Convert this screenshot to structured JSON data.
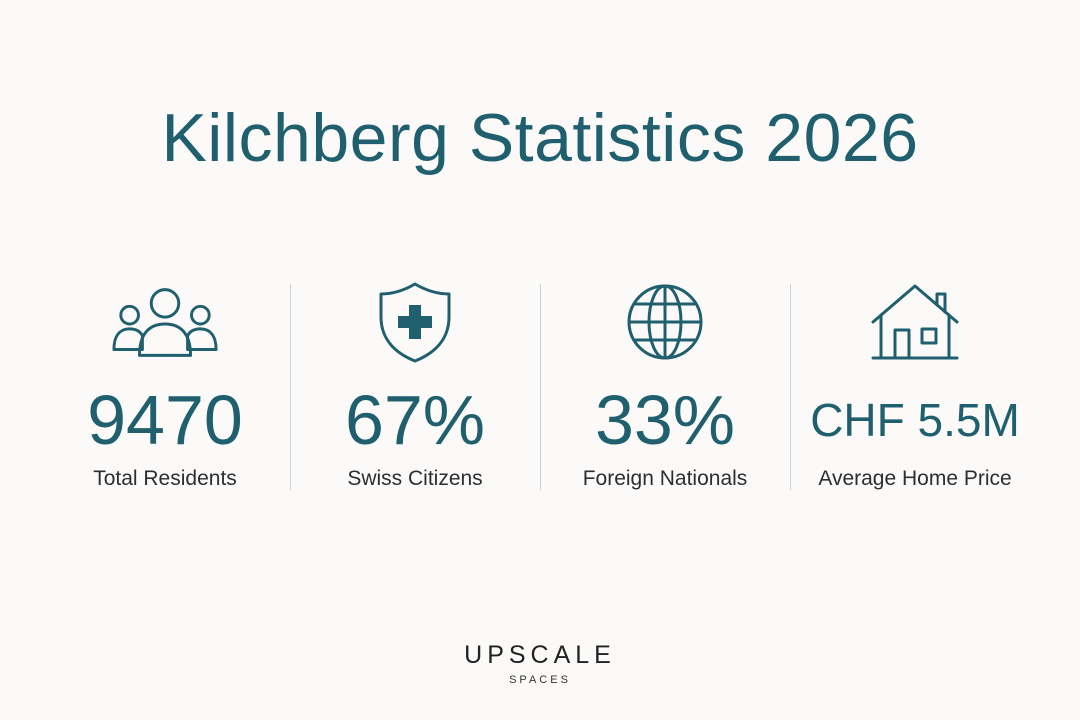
{
  "title": "Kilchberg Statistics 2026",
  "stats": [
    {
      "icon": "people-group-icon",
      "value": "9470",
      "label": "Total Residents"
    },
    {
      "icon": "shield-cross-icon",
      "value": "67%",
      "label": "Swiss Citizens"
    },
    {
      "icon": "globe-icon",
      "value": "33%",
      "label": "Foreign Nationals"
    },
    {
      "icon": "house-icon",
      "value": "CHF 5.5M",
      "label": "Average Home Price"
    }
  ],
  "brand": {
    "name": "UPSCALE",
    "tagline": "SPACES"
  },
  "colors": {
    "accent": "#1f5f6e",
    "background": "#fbfaf8",
    "divider": "#c9d4d7",
    "label_text": "#2a2f33"
  }
}
